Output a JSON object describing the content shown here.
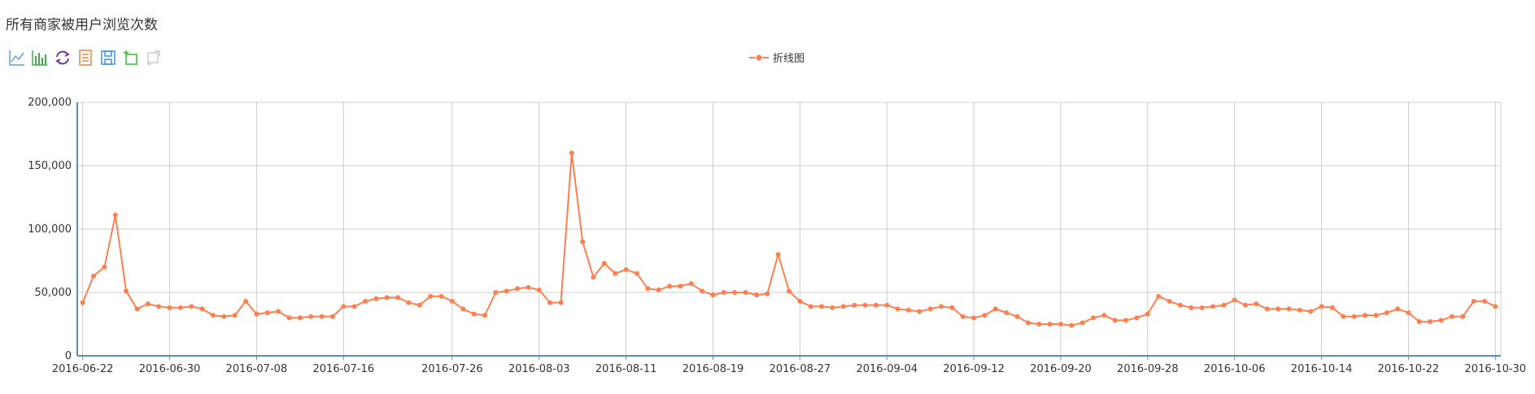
{
  "title": "所有商家被用户浏览次数",
  "toolbox": [
    {
      "name": "line-chart-icon",
      "color": "#61a0d8"
    },
    {
      "name": "bar-chart-icon",
      "color": "#41b04a"
    },
    {
      "name": "restore-icon",
      "color": "#6a2d8f"
    },
    {
      "name": "data-view-icon",
      "color": "#e8873e"
    },
    {
      "name": "save-image-icon",
      "color": "#3b8fe5"
    },
    {
      "name": "zoom-in-icon",
      "color": "#2fbf2f"
    },
    {
      "name": "zoom-back-icon",
      "color": "#cccccc"
    }
  ],
  "colors": {
    "series": "#ff7f50",
    "axis": "#5b8db8",
    "grid": "#cccccc"
  },
  "chart_data": {
    "type": "line",
    "legend": "top-center",
    "grid": true,
    "ylim": [
      0,
      200000
    ],
    "yticks": [
      "0",
      "50,000",
      "100,000",
      "150,000",
      "200,000"
    ],
    "xticks": [
      "2016-06-22",
      "2016-06-30",
      "2016-07-08",
      "2016-07-16",
      "2016-07-26",
      "2016-08-03",
      "2016-08-11",
      "2016-08-19",
      "2016-08-27",
      "2016-09-04",
      "2016-09-12",
      "2016-09-20",
      "2016-09-28",
      "2016-10-06",
      "2016-10-14",
      "2016-10-22",
      "2016-10-30"
    ],
    "x_start": "2016-06-22",
    "x_end": "2016-10-31",
    "series": [
      {
        "name": "折线图",
        "values": [
          42000,
          63000,
          70000,
          111000,
          51000,
          37000,
          41000,
          39000,
          38000,
          38000,
          39000,
          37000,
          32000,
          31000,
          32000,
          43000,
          33000,
          34000,
          35000,
          30000,
          30000,
          31000,
          31000,
          31000,
          39000,
          39000,
          43000,
          45000,
          46000,
          46000,
          42000,
          40000,
          47000,
          47000,
          43000,
          37000,
          33000,
          32000,
          50000,
          51000,
          53000,
          54000,
          52000,
          42000,
          42000,
          160000,
          90000,
          62000,
          73000,
          65000,
          68000,
          65000,
          53000,
          52000,
          55000,
          55000,
          57000,
          51000,
          48000,
          50000,
          50000,
          50000,
          48000,
          49000,
          80000,
          51000,
          43000,
          39000,
          39000,
          38000,
          39000,
          40000,
          40000,
          40000,
          40000,
          37000,
          36000,
          35000,
          37000,
          39000,
          38000,
          31000,
          30000,
          32000,
          37000,
          34000,
          31000,
          26000,
          25000,
          25000,
          25000,
          24000,
          26000,
          30000,
          32000,
          28000,
          28000,
          30000,
          33000,
          47000,
          43000,
          40000,
          38000,
          38000,
          39000,
          40000,
          44000,
          40000,
          41000,
          37000,
          37000,
          37000,
          36000,
          35000,
          39000,
          38000,
          31000,
          31000,
          32000,
          32000,
          34000,
          37000,
          34000,
          27000,
          27000,
          28000,
          31000,
          31000,
          43000,
          43000,
          39000
        ]
      }
    ]
  }
}
